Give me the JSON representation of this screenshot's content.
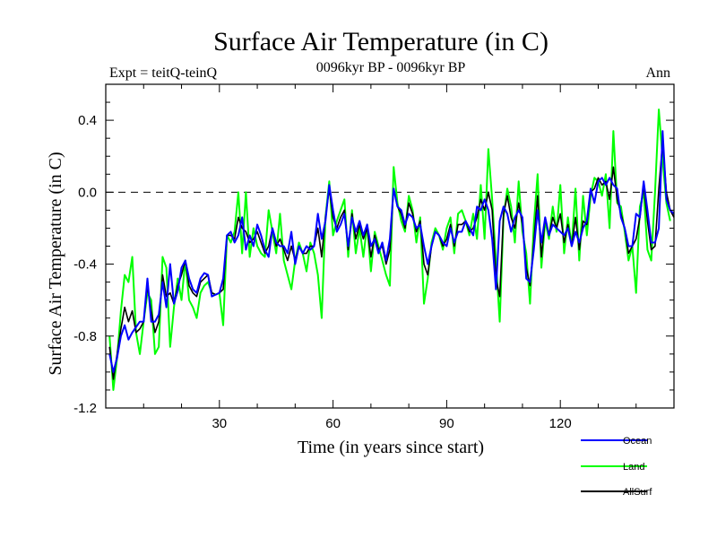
{
  "chart_data": {
    "type": "line",
    "title": "Surface Air Temperature (in C)",
    "subtitle_left": "Expt = teitQ-teinQ",
    "subtitle_center": "0096kyr BP - 0096kyr BP",
    "subtitle_right": "Ann",
    "xlabel": "Time (in years since start)",
    "ylabel": "Surface Air Temperature (in C)",
    "xlim": [
      0,
      150
    ],
    "ylim": [
      -1.2,
      0.6
    ],
    "xticks": [
      30,
      60,
      90,
      120
    ],
    "yticks": [
      -1.2,
      -0.8,
      -0.4,
      0.0,
      0.4
    ],
    "ytick_labels": [
      "-1.2",
      "-0.8",
      "-0.4",
      "0.0",
      "0.4"
    ],
    "reference_line": 0.0,
    "series": [
      {
        "name": "Ocean",
        "color": "#0000ff",
        "values": [
          -0.9,
          -1.0,
          -0.92,
          -0.8,
          -0.74,
          -0.82,
          -0.78,
          -0.75,
          -0.72,
          -0.72,
          -0.48,
          -0.72,
          -0.72,
          -0.68,
          -0.5,
          -0.64,
          -0.4,
          -0.62,
          -0.55,
          -0.42,
          -0.38,
          -0.48,
          -0.54,
          -0.56,
          -0.48,
          -0.45,
          -0.46,
          -0.58,
          -0.57,
          -0.56,
          -0.48,
          -0.24,
          -0.22,
          -0.28,
          -0.24,
          -0.14,
          -0.32,
          -0.24,
          -0.3,
          -0.18,
          -0.24,
          -0.32,
          -0.36,
          -0.2,
          -0.28,
          -0.3,
          -0.3,
          -0.34,
          -0.22,
          -0.4,
          -0.3,
          -0.34,
          -0.3,
          -0.32,
          -0.3,
          -0.12,
          -0.26,
          -0.16,
          0.04,
          -0.1,
          -0.22,
          -0.18,
          -0.12,
          -0.3,
          -0.14,
          -0.22,
          -0.16,
          -0.24,
          -0.18,
          -0.3,
          -0.26,
          -0.34,
          -0.28,
          -0.38,
          -0.26,
          0.02,
          -0.08,
          -0.1,
          -0.18,
          -0.12,
          -0.14,
          -0.2,
          -0.18,
          -0.3,
          -0.4,
          -0.3,
          -0.22,
          -0.24,
          -0.28,
          -0.3,
          -0.2,
          -0.28,
          -0.22,
          -0.22,
          -0.16,
          -0.2,
          -0.24,
          -0.08,
          -0.1,
          -0.04,
          -0.1,
          -0.26,
          -0.54,
          -0.16,
          -0.08,
          -0.12,
          -0.22,
          -0.14,
          -0.1,
          -0.14,
          -0.48,
          -0.5,
          -0.32,
          -0.1,
          -0.28,
          -0.14,
          -0.24,
          -0.18,
          -0.2,
          -0.22,
          -0.24,
          -0.2,
          -0.3,
          -0.22,
          -0.28,
          -0.2,
          -0.16,
          0.02,
          -0.06,
          0.06,
          0.08,
          0.04,
          0.08,
          0.04,
          0.02,
          -0.14,
          -0.2,
          -0.3,
          -0.3,
          -0.12,
          -0.14,
          0.06,
          -0.1,
          -0.28,
          -0.28,
          -0.2,
          0.34,
          -0.04,
          -0.1,
          -0.12
        ]
      },
      {
        "name": "Land",
        "color": "#00ff00",
        "values": [
          -0.8,
          -1.1,
          -0.92,
          -0.66,
          -0.46,
          -0.5,
          -0.36,
          -0.78,
          -0.9,
          -0.72,
          -0.56,
          -0.6,
          -0.9,
          -0.86,
          -0.36,
          -0.42,
          -0.86,
          -0.64,
          -0.48,
          -0.6,
          -0.38,
          -0.6,
          -0.64,
          -0.7,
          -0.56,
          -0.52,
          -0.5,
          -0.56,
          -0.57,
          -0.56,
          -0.74,
          -0.24,
          -0.28,
          -0.22,
          0.0,
          -0.34,
          0.0,
          -0.36,
          -0.2,
          -0.3,
          -0.34,
          -0.36,
          -0.1,
          -0.22,
          -0.34,
          -0.12,
          -0.38,
          -0.46,
          -0.54,
          -0.38,
          -0.28,
          -0.34,
          -0.44,
          -0.28,
          -0.34,
          -0.46,
          -0.7,
          -0.14,
          0.06,
          -0.24,
          -0.16,
          -0.1,
          -0.04,
          -0.36,
          -0.1,
          -0.34,
          -0.2,
          -0.36,
          -0.18,
          -0.44,
          -0.22,
          -0.3,
          -0.38,
          -0.46,
          -0.52,
          0.14,
          -0.06,
          -0.16,
          -0.22,
          -0.02,
          -0.1,
          -0.28,
          -0.14,
          -0.62,
          -0.48,
          -0.28,
          -0.2,
          -0.24,
          -0.32,
          -0.2,
          -0.14,
          -0.34,
          -0.12,
          -0.1,
          -0.16,
          -0.24,
          -0.12,
          -0.26,
          0.04,
          -0.26,
          0.24,
          -0.04,
          -0.38,
          -0.72,
          -0.14,
          0.02,
          -0.08,
          -0.28,
          0.06,
          -0.22,
          -0.34,
          -0.62,
          -0.18,
          0.1,
          -0.42,
          -0.16,
          -0.26,
          -0.08,
          -0.22,
          0.04,
          -0.34,
          -0.14,
          -0.3,
          0.02,
          -0.38,
          -0.02,
          -0.24,
          -0.02,
          0.08,
          0.06,
          -0.02,
          0.1,
          -0.2,
          0.34,
          -0.06,
          -0.08,
          -0.22,
          -0.38,
          -0.3,
          -0.56,
          -0.08,
          0.0,
          -0.32,
          -0.38,
          0.0,
          0.46,
          0.18,
          -0.06,
          -0.16
        ]
      },
      {
        "name": "AllSurf",
        "color": "#000000",
        "values": [
          -0.86,
          -1.04,
          -0.9,
          -0.76,
          -0.64,
          -0.72,
          -0.66,
          -0.78,
          -0.76,
          -0.72,
          -0.52,
          -0.66,
          -0.78,
          -0.72,
          -0.46,
          -0.58,
          -0.56,
          -0.62,
          -0.52,
          -0.46,
          -0.38,
          -0.52,
          -0.56,
          -0.58,
          -0.5,
          -0.48,
          -0.46,
          -0.56,
          -0.57,
          -0.56,
          -0.54,
          -0.24,
          -0.24,
          -0.26,
          -0.14,
          -0.2,
          -0.22,
          -0.28,
          -0.26,
          -0.22,
          -0.28,
          -0.34,
          -0.3,
          -0.2,
          -0.3,
          -0.26,
          -0.32,
          -0.38,
          -0.3,
          -0.38,
          -0.3,
          -0.34,
          -0.34,
          -0.3,
          -0.3,
          -0.2,
          -0.36,
          -0.14,
          0.02,
          -0.14,
          -0.2,
          -0.14,
          -0.1,
          -0.32,
          -0.12,
          -0.26,
          -0.18,
          -0.26,
          -0.2,
          -0.36,
          -0.24,
          -0.32,
          -0.3,
          -0.4,
          -0.32,
          0.02,
          -0.08,
          -0.12,
          -0.2,
          -0.06,
          -0.12,
          -0.22,
          -0.16,
          -0.4,
          -0.46,
          -0.3,
          -0.22,
          -0.24,
          -0.3,
          -0.26,
          -0.18,
          -0.3,
          -0.18,
          -0.18,
          -0.16,
          -0.22,
          -0.2,
          -0.14,
          -0.04,
          -0.1,
          0.0,
          -0.1,
          -0.48,
          -0.58,
          -0.12,
          -0.02,
          -0.14,
          -0.2,
          -0.06,
          -0.18,
          -0.42,
          -0.52,
          -0.28,
          -0.02,
          -0.36,
          -0.14,
          -0.24,
          -0.14,
          -0.2,
          -0.12,
          -0.28,
          -0.18,
          -0.3,
          -0.14,
          -0.32,
          -0.16,
          -0.18,
          0.0,
          0.02,
          0.08,
          0.04,
          0.06,
          -0.04,
          0.14,
          -0.04,
          -0.12,
          -0.2,
          -0.34,
          -0.3,
          -0.26,
          -0.14,
          0.04,
          -0.16,
          -0.32,
          -0.3,
          0.02,
          0.28,
          0.0,
          -0.1,
          -0.14
        ]
      }
    ]
  }
}
